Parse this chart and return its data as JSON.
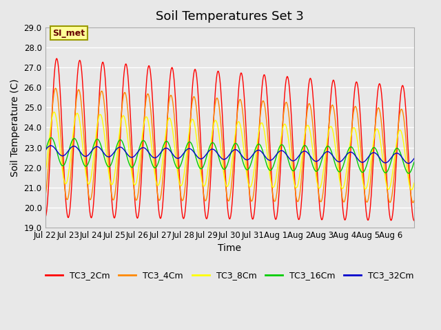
{
  "title": "Soil Temperatures Set 3",
  "xlabel": "Time",
  "ylabel": "Soil Temperature (C)",
  "ylim": [
    19.0,
    29.0
  ],
  "yticks": [
    19.0,
    20.0,
    21.0,
    22.0,
    23.0,
    24.0,
    25.0,
    26.0,
    27.0,
    28.0,
    29.0
  ],
  "background_color": "#e8e8e8",
  "plot_bg_color": "#e8e8e8",
  "grid_color": "#ffffff",
  "annotation_text": "SI_met",
  "annotation_bg": "#ffff99",
  "annotation_border": "#999900",
  "series_colors": {
    "TC3_2Cm": "#ff0000",
    "TC3_4Cm": "#ff8800",
    "TC3_8Cm": "#ffff00",
    "TC3_16Cm": "#00cc00",
    "TC3_32Cm": "#0000cc"
  },
  "xtick_labels": [
    "Jul 22",
    "Jul 23",
    "Jul 24",
    "Jul 25",
    "Jul 26",
    "Jul 27",
    "Jul 28",
    "Jul 29",
    "Jul 30",
    "Jul 31",
    "Aug 1",
    "Aug 2",
    "Aug 3",
    "Aug 4",
    "Aug 5",
    "Aug 6"
  ],
  "xtick_positions": [
    0,
    1,
    2,
    3,
    4,
    5,
    6,
    7,
    8,
    9,
    10,
    11,
    12,
    13,
    14,
    15
  ],
  "n_days": 16,
  "samples_per_day": 48,
  "title_fontsize": 13,
  "label_fontsize": 10,
  "tick_fontsize": 8.5,
  "legend_fontsize": 9
}
